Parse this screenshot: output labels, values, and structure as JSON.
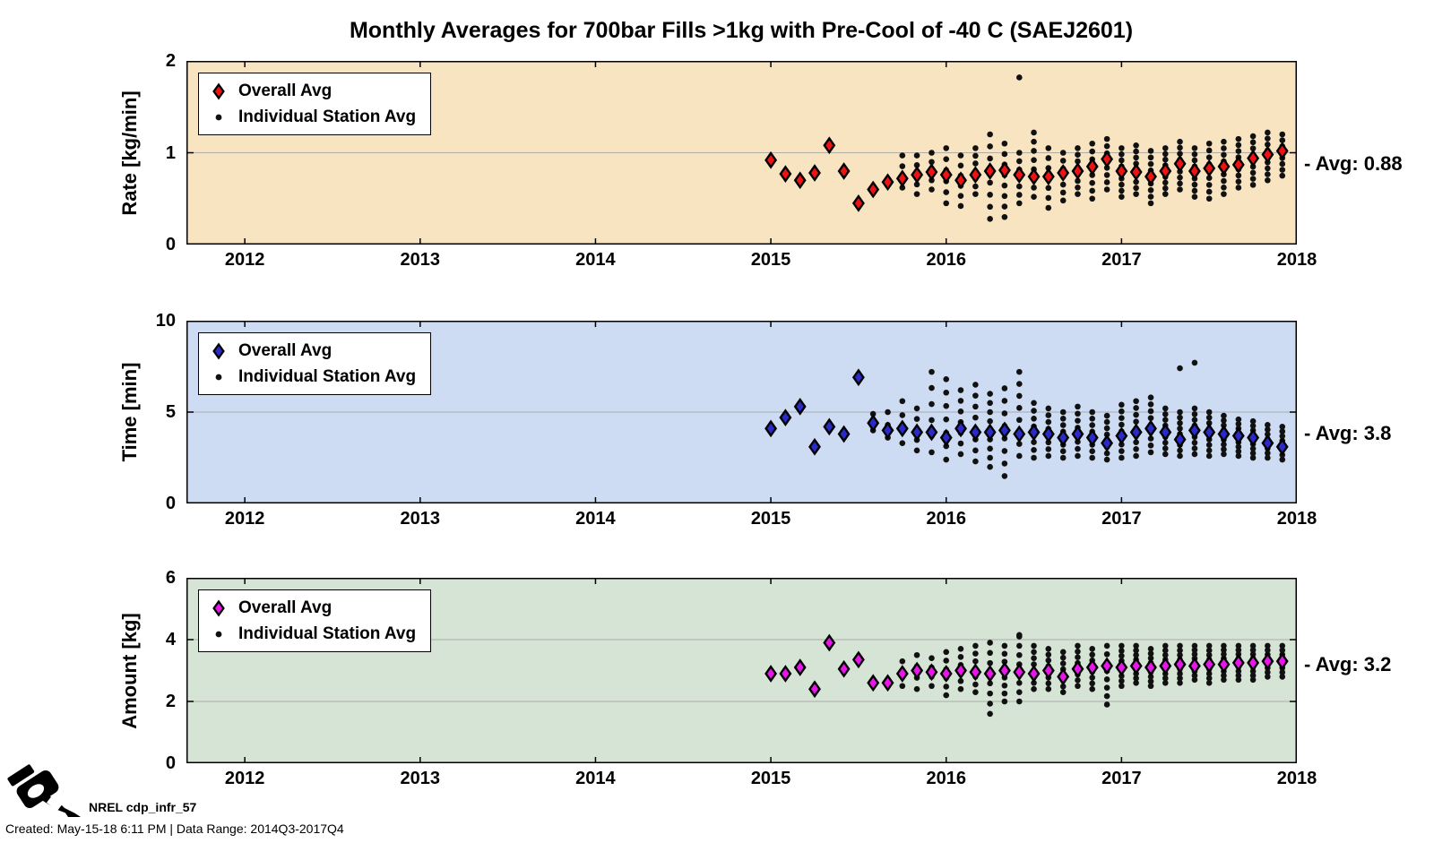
{
  "title": "Monthly Averages for 700bar Fills >1kg with Pre-Cool of -40 C (SAEJ2601)",
  "legend": {
    "overall_label": "Overall Avg",
    "individual_label": "Individual Station Avg"
  },
  "footer": {
    "logo_label": "NREL cdp_infr_57",
    "created_line": "Created: May-15-18  6:11 PM | Data Range: 2014Q3-2017Q4",
    "logo_icon": "fuel-pump-nozzle"
  },
  "x_axis": {
    "min": 2011.667,
    "max": 2018,
    "ticks": [
      2012,
      2013,
      2014,
      2015,
      2016,
      2017,
      2018
    ]
  },
  "colors": {
    "rate_bg": "#f9e4c1",
    "time_bg": "#cddcf2",
    "amount_bg": "#d6e4d6",
    "rate_marker": "#ee1212",
    "time_marker": "#2a2ac8",
    "amount_marker": "#e816e8",
    "station_dot": "#111111",
    "grid": "#9a9a9a"
  },
  "chart_data": [
    {
      "type": "scatter",
      "panel": "rate",
      "ylabel": "Rate [kg/min]",
      "ylim": [
        0,
        2
      ],
      "yticks": [
        0,
        1,
        2
      ],
      "marker_color": "#ee1212",
      "avg_value": 0.88,
      "avg_display": "- Avg: 0.88",
      "overall": {
        "x_start": 2015.0,
        "step_months": 1,
        "values": [
          0.92,
          0.77,
          0.7,
          0.78,
          1.08,
          0.8,
          0.45,
          0.6,
          0.68,
          0.72,
          0.76,
          0.79,
          0.76,
          0.7,
          0.76,
          0.8,
          0.81,
          0.76,
          0.74,
          0.74,
          0.78,
          0.8,
          0.85,
          0.93,
          0.8,
          0.79,
          0.74,
          0.8,
          0.88,
          0.8,
          0.83,
          0.85,
          0.87,
          0.94,
          0.98,
          1.02
        ]
      },
      "stations": {
        "clusters": [
          [
            2015.75,
            0.62,
            0.97,
            4
          ],
          [
            2015.833,
            0.55,
            0.97,
            5
          ],
          [
            2015.917,
            0.6,
            1.0,
            5
          ],
          [
            2016.0,
            0.45,
            1.05,
            6
          ],
          [
            2016.083,
            0.42,
            0.97,
            6
          ],
          [
            2016.167,
            0.55,
            1.05,
            7
          ],
          [
            2016.25,
            0.28,
            1.2,
            8
          ],
          [
            2016.333,
            0.3,
            1.1,
            8
          ],
          [
            2016.417,
            0.45,
            1.0,
            7
          ],
          [
            2016.5,
            0.52,
            1.22,
            8
          ],
          [
            2016.583,
            0.4,
            1.05,
            7
          ],
          [
            2016.667,
            0.48,
            1.0,
            7
          ],
          [
            2016.75,
            0.55,
            1.05,
            8
          ],
          [
            2016.833,
            0.5,
            1.1,
            8
          ],
          [
            2016.917,
            0.6,
            1.15,
            8
          ],
          [
            2017.0,
            0.52,
            1.05,
            9
          ],
          [
            2017.083,
            0.55,
            1.08,
            9
          ],
          [
            2017.167,
            0.45,
            1.02,
            9
          ],
          [
            2017.25,
            0.55,
            1.05,
            9
          ],
          [
            2017.333,
            0.6,
            1.12,
            9
          ],
          [
            2017.417,
            0.52,
            1.05,
            9
          ],
          [
            2017.5,
            0.5,
            1.1,
            9
          ],
          [
            2017.583,
            0.55,
            1.12,
            9
          ],
          [
            2017.667,
            0.62,
            1.15,
            9
          ],
          [
            2017.75,
            0.65,
            1.18,
            9
          ],
          [
            2017.833,
            0.7,
            1.22,
            9
          ],
          [
            2017.917,
            0.75,
            1.2,
            8
          ]
        ],
        "outliers": [
          [
            2016.417,
            1.82
          ]
        ]
      }
    },
    {
      "type": "scatter",
      "panel": "time",
      "ylabel": "Time [min]",
      "ylim": [
        0,
        10
      ],
      "yticks": [
        0,
        5,
        10
      ],
      "marker_color": "#2a2ac8",
      "avg_value": 3.8,
      "avg_display": "- Avg: 3.8",
      "overall": {
        "x_start": 2015.0,
        "step_months": 1,
        "values": [
          4.1,
          4.7,
          5.3,
          3.1,
          4.2,
          3.8,
          6.9,
          4.4,
          4.0,
          4.1,
          3.9,
          3.9,
          3.6,
          4.1,
          3.9,
          3.9,
          4.0,
          3.8,
          3.9,
          3.8,
          3.6,
          3.8,
          3.6,
          3.3,
          3.7,
          3.9,
          4.1,
          3.9,
          3.5,
          4.0,
          3.9,
          3.8,
          3.7,
          3.6,
          3.3,
          3.1
        ]
      },
      "stations": {
        "clusters": [
          [
            2015.583,
            4.0,
            4.9,
            2
          ],
          [
            2015.667,
            3.6,
            5.0,
            3
          ],
          [
            2015.75,
            3.3,
            5.6,
            4
          ],
          [
            2015.833,
            2.9,
            5.2,
            5
          ],
          [
            2015.917,
            2.8,
            7.2,
            6
          ],
          [
            2016.0,
            2.4,
            6.8,
            7
          ],
          [
            2016.083,
            2.7,
            6.2,
            7
          ],
          [
            2016.167,
            2.3,
            6.5,
            8
          ],
          [
            2016.25,
            2.0,
            6.0,
            9
          ],
          [
            2016.333,
            1.5,
            6.3,
            8
          ],
          [
            2016.417,
            2.6,
            7.2,
            8
          ],
          [
            2016.5,
            2.5,
            5.5,
            8
          ],
          [
            2016.583,
            2.6,
            5.2,
            8
          ],
          [
            2016.667,
            2.5,
            5.0,
            8
          ],
          [
            2016.75,
            2.6,
            5.3,
            8
          ],
          [
            2016.833,
            2.5,
            5.0,
            8
          ],
          [
            2016.917,
            2.4,
            4.8,
            8
          ],
          [
            2017.0,
            2.5,
            5.4,
            9
          ],
          [
            2017.083,
            2.6,
            5.6,
            9
          ],
          [
            2017.167,
            2.8,
            5.8,
            9
          ],
          [
            2017.25,
            2.7,
            5.2,
            9
          ],
          [
            2017.333,
            2.6,
            5.0,
            9
          ],
          [
            2017.417,
            2.7,
            5.2,
            9
          ],
          [
            2017.5,
            2.6,
            5.0,
            9
          ],
          [
            2017.583,
            2.7,
            4.8,
            9
          ],
          [
            2017.667,
            2.6,
            4.6,
            9
          ],
          [
            2017.75,
            2.5,
            4.5,
            9
          ],
          [
            2017.833,
            2.5,
            4.3,
            8
          ],
          [
            2017.917,
            2.4,
            4.2,
            8
          ]
        ],
        "outliers": [
          [
            2017.333,
            7.4
          ],
          [
            2017.417,
            7.7
          ]
        ]
      }
    },
    {
      "type": "scatter",
      "panel": "amount",
      "ylabel": "Amount [kg]",
      "ylim": [
        0,
        6
      ],
      "yticks": [
        0,
        2,
        4,
        6
      ],
      "marker_color": "#e816e8",
      "avg_value": 3.2,
      "avg_display": "- Avg: 3.2",
      "overall": {
        "x_start": 2015.0,
        "step_months": 1,
        "values": [
          2.9,
          2.9,
          3.1,
          2.4,
          3.9,
          3.05,
          3.35,
          2.6,
          2.6,
          2.9,
          3.0,
          2.95,
          2.9,
          3.0,
          2.95,
          2.9,
          3.0,
          2.95,
          2.9,
          3.0,
          2.8,
          3.05,
          3.1,
          3.15,
          3.1,
          3.15,
          3.1,
          3.15,
          3.2,
          3.15,
          3.2,
          3.2,
          3.25,
          3.25,
          3.3,
          3.3
        ]
      },
      "stations": {
        "clusters": [
          [
            2015.75,
            2.5,
            3.3,
            3
          ],
          [
            2015.833,
            2.4,
            3.5,
            4
          ],
          [
            2015.917,
            2.5,
            3.4,
            4
          ],
          [
            2016.0,
            2.2,
            3.6,
            6
          ],
          [
            2016.083,
            2.4,
            3.7,
            6
          ],
          [
            2016.167,
            2.3,
            3.8,
            7
          ],
          [
            2016.25,
            1.6,
            3.9,
            8
          ],
          [
            2016.333,
            2.0,
            3.8,
            8
          ],
          [
            2016.417,
            2.0,
            4.1,
            8
          ],
          [
            2016.5,
            2.4,
            3.8,
            8
          ],
          [
            2016.583,
            2.4,
            3.7,
            8
          ],
          [
            2016.667,
            2.3,
            3.6,
            8
          ],
          [
            2016.75,
            2.5,
            3.8,
            8
          ],
          [
            2016.833,
            2.4,
            3.7,
            8
          ],
          [
            2016.917,
            1.9,
            3.8,
            8
          ],
          [
            2017.0,
            2.5,
            3.8,
            9
          ],
          [
            2017.083,
            2.6,
            3.8,
            9
          ],
          [
            2017.167,
            2.5,
            3.7,
            9
          ],
          [
            2017.25,
            2.6,
            3.8,
            9
          ],
          [
            2017.333,
            2.6,
            3.8,
            9
          ],
          [
            2017.417,
            2.7,
            3.8,
            9
          ],
          [
            2017.5,
            2.6,
            3.8,
            9
          ],
          [
            2017.583,
            2.7,
            3.8,
            9
          ],
          [
            2017.667,
            2.7,
            3.8,
            9
          ],
          [
            2017.75,
            2.7,
            3.8,
            9
          ],
          [
            2017.833,
            2.8,
            3.8,
            8
          ],
          [
            2017.917,
            2.8,
            3.8,
            8
          ]
        ],
        "outliers": [
          [
            2016.417,
            4.15
          ]
        ]
      }
    }
  ]
}
